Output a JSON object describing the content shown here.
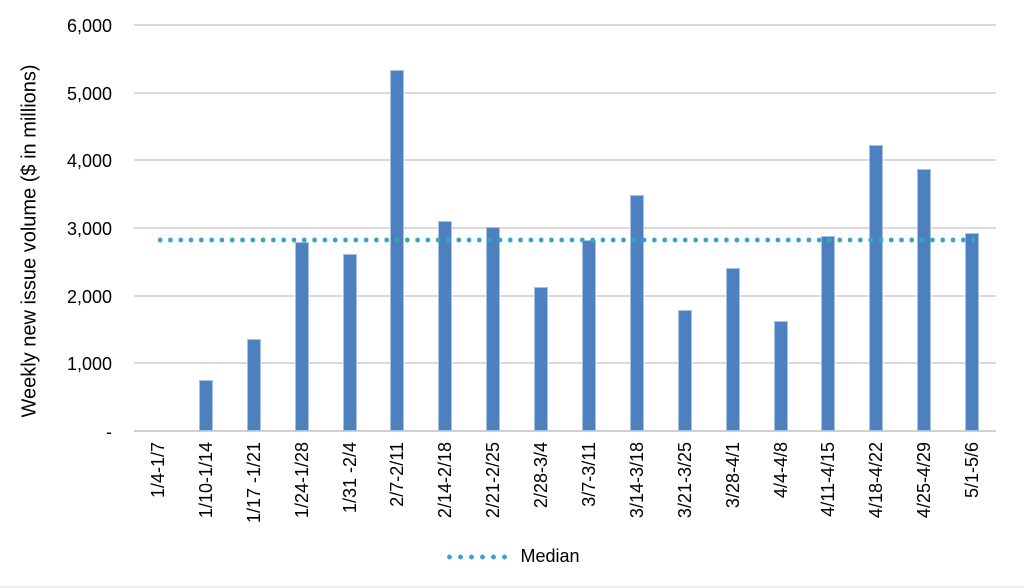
{
  "chart_data": {
    "type": "bar",
    "title": "",
    "xlabel": "",
    "ylabel": "Weekly new issue volume ($ in millions)",
    "categories": [
      "1/4-1/7",
      "1/10-1/14",
      "1/17 -1/21",
      "1/24-1/28",
      "1/31 -2/4",
      "2/7-2/11",
      "2/14-2/18",
      "2/21-2/25",
      "2/28-3/4",
      "3/7-3/11",
      "3/14-3/18",
      "3/21-3/25",
      "3/28-4/1",
      "4/4-4/8",
      "4/11-4/15",
      "4/18-4/22",
      "4/25-4/29",
      "5/1-5/6"
    ],
    "values": [
      0,
      760,
      1360,
      2790,
      2620,
      5340,
      3110,
      3020,
      2130,
      2820,
      3490,
      1790,
      2410,
      1620,
      2880,
      4220,
      3870,
      2920
    ],
    "ylim": [
      0,
      6000
    ],
    "yticks": [
      {
        "value": 0,
        "label": "-"
      },
      {
        "value": 1000,
        "label": "1,000"
      },
      {
        "value": 2000,
        "label": "2,000"
      },
      {
        "value": 3000,
        "label": "3,000"
      },
      {
        "value": 4000,
        "label": "4,000"
      },
      {
        "value": 5000,
        "label": "5,000"
      },
      {
        "value": 6000,
        "label": "6,000"
      }
    ],
    "grid": true,
    "median_line": {
      "value": 2820,
      "style": "dotted"
    },
    "legend": {
      "position": "bottom",
      "entries": [
        {
          "label": "Median",
          "marker": "dotted-line"
        }
      ]
    },
    "colors": {
      "bar": "#4D80BE",
      "bar_border": "#A9C2E1",
      "median": "#36A5C6",
      "gridline": "#DADADA",
      "axis_line": "#D0D0D0",
      "text": "#000000",
      "background": "#FFFFFF"
    }
  }
}
